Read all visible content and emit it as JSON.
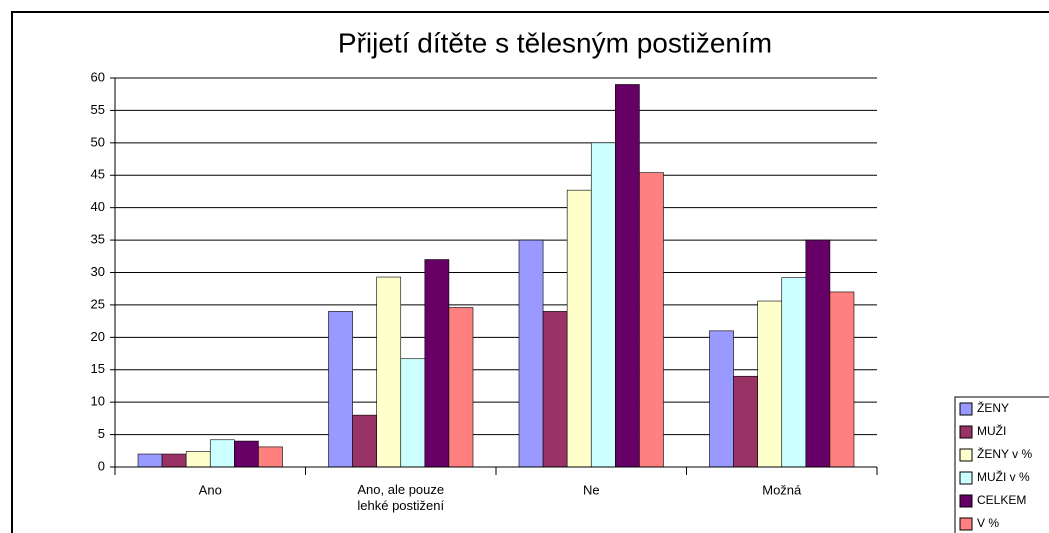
{
  "chart_data": {
    "type": "bar",
    "title": "Přijetí dítěte s tělesným postižením",
    "categories": [
      "Ano",
      "Ano, ale pouze lehké postižení",
      "Ne",
      "Možná"
    ],
    "series": [
      {
        "name": "ŽENY",
        "color": "#9999ff",
        "values": [
          2,
          24,
          35,
          21
        ]
      },
      {
        "name": "MUŽI",
        "color": "#993366",
        "values": [
          2,
          8,
          24,
          14
        ]
      },
      {
        "name": "ŽENY v %",
        "color": "#ffffcc",
        "values": [
          2.4,
          29.3,
          42.7,
          25.6
        ]
      },
      {
        "name": "MUŽI v %",
        "color": "#ccffff",
        "values": [
          4.2,
          16.7,
          50,
          29.2
        ]
      },
      {
        "name": "CELKEM",
        "color": "#660066",
        "values": [
          4,
          32,
          59,
          35
        ]
      },
      {
        "name": "V %",
        "color": "#ff8080",
        "values": [
          3.1,
          24.6,
          45.4,
          27
        ]
      }
    ],
    "ylim": [
      0,
      60
    ],
    "yticks": [
      0,
      5,
      10,
      15,
      20,
      25,
      30,
      35,
      40,
      45,
      50,
      55,
      60
    ],
    "grid": true,
    "legend": "right"
  }
}
